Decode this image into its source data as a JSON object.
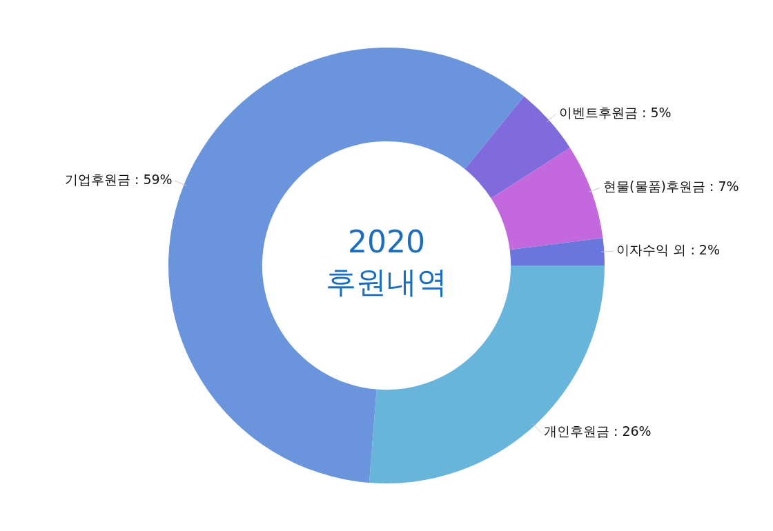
{
  "chart_data": {
    "type": "donut",
    "title": "2020",
    "subtitle": "후원내역",
    "categories": [
      "개인후원금",
      "기업후원금",
      "이벤트후원금",
      "현물(물품)후원금",
      "이자수익 외"
    ],
    "values": [
      26,
      59,
      5,
      7,
      2
    ],
    "value_labels": [
      "26%",
      "59%",
      "5%",
      "7%",
      "2%"
    ],
    "colors": [
      "#68b5dc",
      "#6a95dd",
      "#7f6bdc",
      "#c468dd",
      "#6a76dc"
    ],
    "legend": false
  }
}
